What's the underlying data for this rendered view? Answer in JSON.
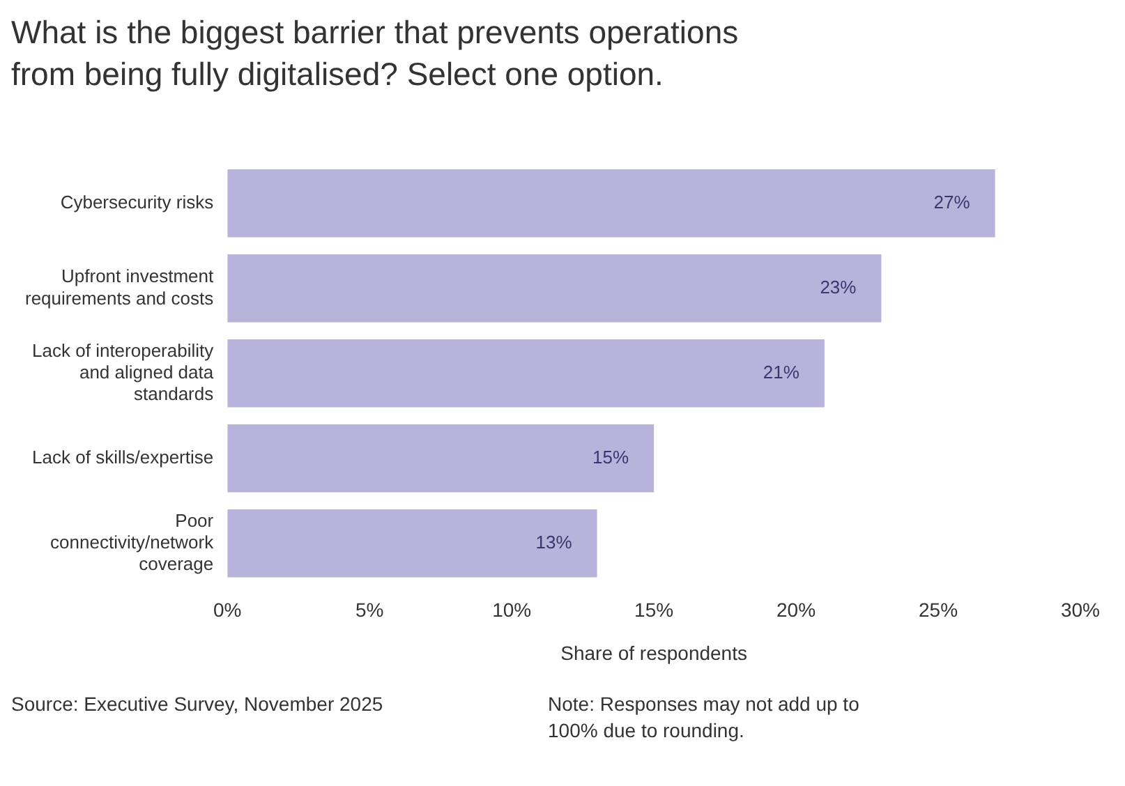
{
  "chart_data": {
    "type": "bar",
    "orientation": "horizontal",
    "title": "What is the biggest barrier that prevents operations from being fully digitalised? Select one option.",
    "categories": [
      "Cybersecurity risks",
      "Upfront investment requirements and costs",
      "Lack of interoperability and aligned data standards",
      "Lack of skills/expertise",
      "Poor connectivity/network coverage"
    ],
    "values": [
      27,
      23,
      21,
      15,
      13
    ],
    "value_labels": [
      "27%",
      "23%",
      "21%",
      "15%",
      "13%"
    ],
    "color": "#b8b3da",
    "xlim": [
      0,
      30
    ],
    "xticks": [
      {
        "value": 0,
        "label": "0%"
      },
      {
        "value": 5,
        "label": "5%"
      },
      {
        "value": 10,
        "label": "10%"
      },
      {
        "value": 15,
        "label": "15%"
      },
      {
        "value": 20,
        "label": "20%"
      },
      {
        "value": 25,
        "label": "25%"
      },
      {
        "value": 30,
        "label": "30%"
      }
    ],
    "xlabel": "Share of respondents",
    "grid": false,
    "legend": false,
    "annotations": [
      "Source: Executive Survey, November 2025",
      "Note: Responses may not add up to 100% due to rounding."
    ]
  }
}
